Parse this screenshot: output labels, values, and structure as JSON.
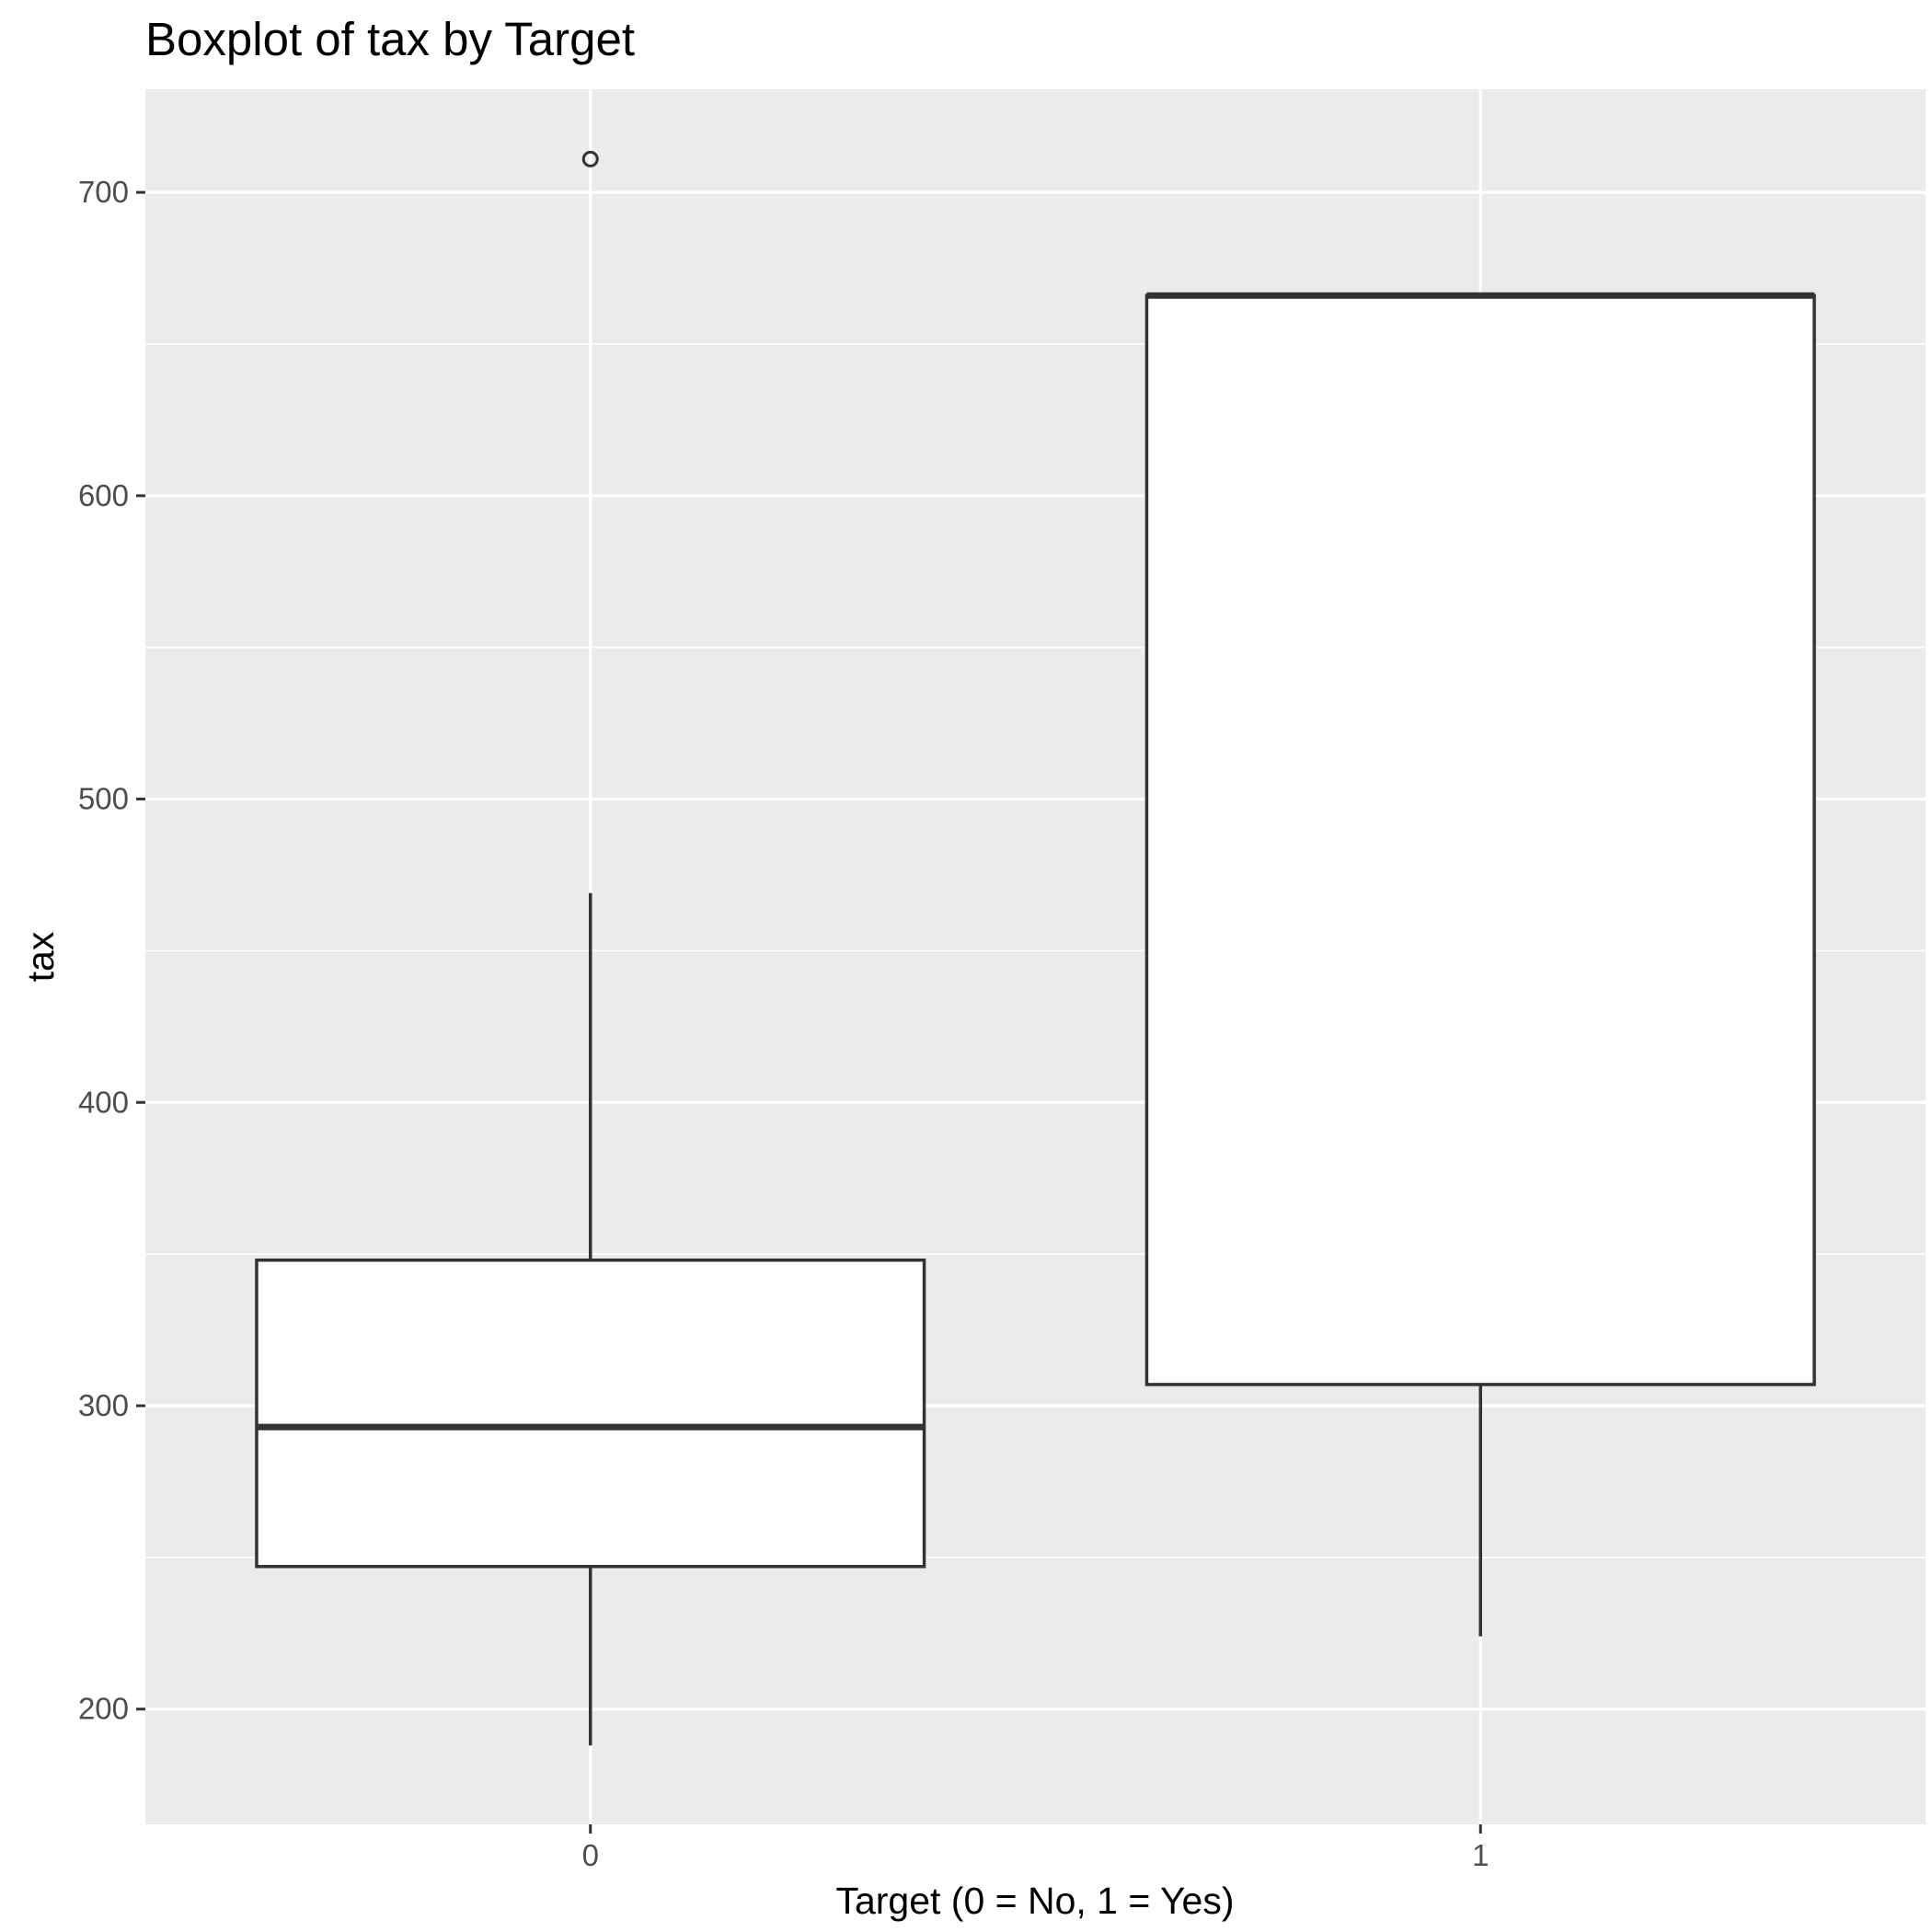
{
  "chart_data": {
    "type": "boxplot",
    "title": "Boxplot of tax by Target",
    "xlabel": "Target (0 = No, 1 = Yes)",
    "ylabel": "tax",
    "categories": [
      "0",
      "1"
    ],
    "y_ticks": [
      200,
      300,
      400,
      500,
      600,
      700
    ],
    "ylim": [
      162,
      734
    ],
    "grid": true,
    "boxes": [
      {
        "category": "0",
        "whisker_low": 188,
        "q1": 247,
        "median": 293,
        "q3": 348,
        "whisker_high": 469,
        "outliers": [
          711
        ]
      },
      {
        "category": "1",
        "whisker_low": 224,
        "q1": 307,
        "median": 666,
        "q3": 666,
        "whisker_high": 666,
        "outliers": []
      }
    ],
    "colors": {
      "panel_background": "#ebebeb",
      "grid_line": "#ffffff",
      "box_fill": "#ffffff",
      "box_stroke": "#333333",
      "tick_mark": "#333333"
    }
  }
}
